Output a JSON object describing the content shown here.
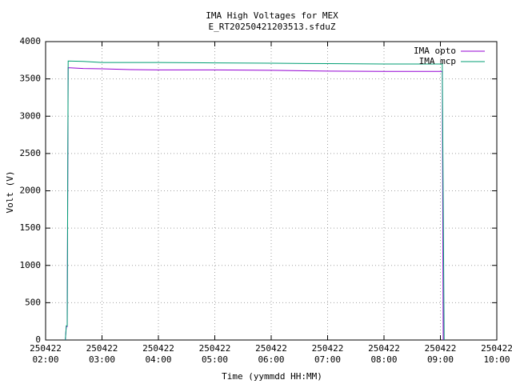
{
  "chart_data": {
    "type": "line",
    "title": "IMA High Voltages for MEX",
    "subtitle": "E_RT20250421203513.sfduZ",
    "x_label": "Time (yymmdd HH:MM)",
    "y_label": "Volt (V)",
    "xlim": [
      "250422 02:00",
      "250422 10:00"
    ],
    "xticks": [
      "250422 02:00",
      "250422 03:00",
      "250422 04:00",
      "250422 05:00",
      "250422 06:00",
      "250422 07:00",
      "250422 08:00",
      "250422 09:00",
      "250422 10:00"
    ],
    "ylim": [
      0,
      4000
    ],
    "yticks": [
      0,
      500,
      1000,
      1500,
      2000,
      2500,
      3000,
      3500,
      4000
    ],
    "grid": true,
    "legend": "top-right",
    "series": [
      {
        "name": "IMA opto",
        "color": "#9400d3",
        "x": [
          "250422 02:21",
          "250422 02:22",
          "250422 02:23",
          "250422 02:24",
          "250422 02:40",
          "250422 03:00",
          "250422 03:30",
          "250422 04:00",
          "250422 05:00",
          "250422 06:00",
          "250422 07:00",
          "250422 08:00",
          "250422 09:02",
          "250422 09:03"
        ],
        "values": [
          0,
          180,
          180,
          3650,
          3640,
          3635,
          3625,
          3620,
          3620,
          3615,
          3605,
          3600,
          3600,
          0
        ]
      },
      {
        "name": "IMA mcp",
        "color": "#009e73",
        "x": [
          "250422 02:21",
          "250422 02:22",
          "250422 02:23",
          "250422 02:24",
          "250422 02:40",
          "250422 03:00",
          "250422 04:00",
          "250422 05:00",
          "250422 06:00",
          "250422 07:00",
          "250422 08:00",
          "250422 09:02",
          "250422 09:04"
        ],
        "values": [
          0,
          190,
          190,
          3740,
          3735,
          3720,
          3720,
          3715,
          3710,
          3705,
          3700,
          3700,
          0
        ]
      }
    ]
  }
}
